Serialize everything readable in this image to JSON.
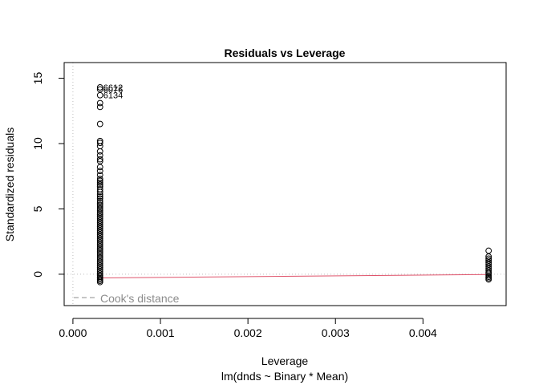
{
  "chart_data": {
    "type": "scatter",
    "title": "Residuals vs Leverage",
    "xlabel": "Leverage",
    "subtitle": "lm(dnds ~ Binary * Mean)",
    "ylabel": "Standardized residuals",
    "xlim": [
      -0.0001,
      0.00495
    ],
    "ylim": [
      -2.4,
      16.2
    ],
    "x_ticks": [
      "0.000",
      "0.001",
      "0.002",
      "0.003",
      "0.004"
    ],
    "x_tick_values": [
      0,
      0.001,
      0.002,
      0.003,
      0.004
    ],
    "y_ticks": [
      "0",
      "5",
      "10",
      "15"
    ],
    "y_tick_values": [
      0,
      5,
      10,
      15
    ],
    "legend": {
      "label": "Cook's distance",
      "position": "bottom-left",
      "color": "#8c8c8c"
    },
    "reference_lines": {
      "h": 0,
      "v": 0,
      "style": "dotted",
      "color": "#bdbdbd"
    },
    "smoother": {
      "color": "#df536b",
      "x": [
        0.00031,
        0.00475
      ],
      "y": [
        -0.28,
        -0.02
      ]
    },
    "point_color": "#000000",
    "series": [
      {
        "x": 0.00031,
        "y": [
          14.3,
          14.15,
          13.7,
          13.1,
          12.8,
          11.5,
          10.2,
          10.05,
          9.8,
          9.4,
          9.1,
          8.8,
          8.65,
          8.2,
          7.9,
          7.6,
          7.3,
          7.15,
          7.0,
          6.85,
          6.7,
          6.5,
          6.3,
          6.1,
          5.95,
          5.8,
          5.6,
          5.45,
          5.3,
          5.15,
          5.0,
          4.85,
          4.7,
          4.55,
          4.4,
          4.25,
          4.1,
          3.95,
          3.8,
          3.65,
          3.5,
          3.35,
          3.2,
          3.05,
          2.9,
          2.75,
          2.6,
          2.45,
          2.3,
          2.15,
          2.0,
          1.85,
          1.7,
          1.55,
          1.4,
          1.25,
          1.1,
          0.95,
          0.8,
          0.65,
          0.5,
          0.35,
          0.2,
          0.05,
          -0.1,
          -0.2,
          -0.3,
          -0.4,
          -0.5,
          -0.6
        ]
      },
      {
        "x": 0.00475,
        "y": [
          1.8,
          1.35,
          1.2,
          1.05,
          0.9,
          0.75,
          0.6,
          0.45,
          0.3,
          0.15,
          0.05,
          -0.1,
          -0.2,
          -0.3,
          -0.4
        ]
      }
    ],
    "point_labels": [
      {
        "text": "6612",
        "x": 0.00031,
        "y": 14.3
      },
      {
        "text": "6076",
        "x": 0.00031,
        "y": 14.15
      },
      {
        "text": "6134",
        "x": 0.00031,
        "y": 13.7
      }
    ]
  }
}
